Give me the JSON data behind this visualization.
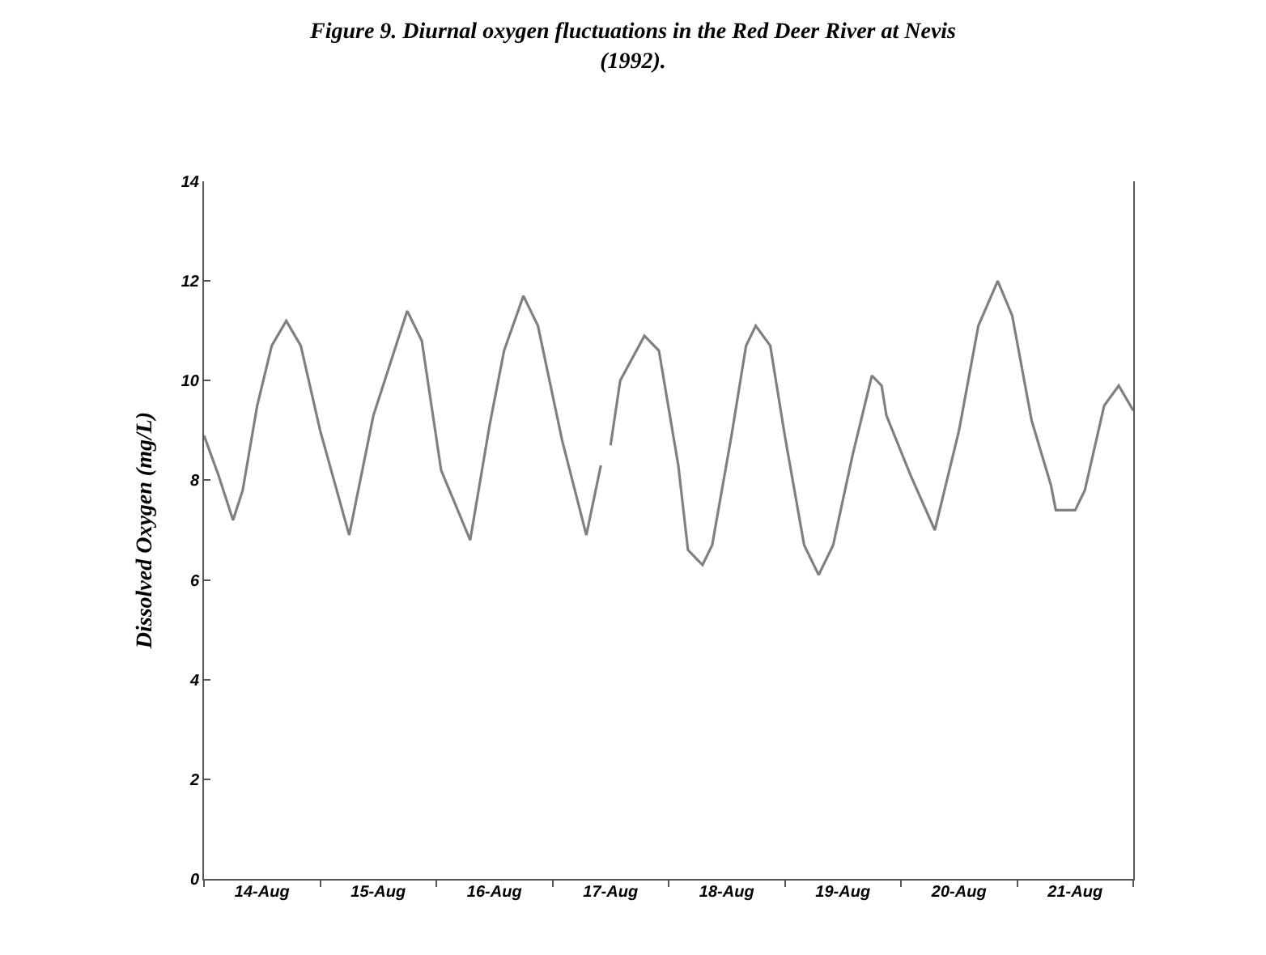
{
  "chart_data": {
    "type": "line",
    "title": "Figure 9. Diurnal oxygen fluctuations in the Red Deer River at Nevis\n(1992).",
    "ylabel": "Dissolved Oxygen (mg/L)",
    "x": [
      "--08-14T00:00",
      "--08-14T03:00",
      "--08-14T06:00",
      "--08-14T08:00",
      "--08-14T11:00",
      "--08-14T14:00",
      "--08-14T17:00",
      "--08-14T20:00",
      "--08-15T00:00",
      "--08-15T06:00",
      "--08-15T11:00",
      "--08-15T18:00",
      "--08-15T21:00",
      "--08-16T01:00",
      "--08-16T07:00",
      "--08-16T11:00",
      "--08-16T14:00",
      "--08-16T18:00",
      "--08-16T21:00",
      "--08-17T02:00",
      "--08-17T07:00",
      "--08-17T10:00",
      "--08-17T11:00",
      "--08-17T12:00",
      "--08-17T14:00",
      "--08-17T19:00",
      "--08-17T22:00",
      "--08-18T02:00",
      "--08-18T04:00",
      "--08-18T07:00",
      "--08-18T09:00",
      "--08-18T13:00",
      "--08-18T16:00",
      "--08-18T18:00",
      "--08-18T21:00",
      "--08-19T00:00",
      "--08-19T04:00",
      "--08-19T07:00",
      "--08-19T10:00",
      "--08-19T14:00",
      "--08-19T18:00",
      "--08-19T20:00",
      "--08-19T21:00",
      "--08-20T02:00",
      "--08-20T07:00",
      "--08-20T12:00",
      "--08-20T16:00",
      "--08-20T20:00",
      "--08-20T23:00",
      "--08-21T03:00",
      "--08-21T07:00",
      "--08-21T08:00",
      "--08-21T12:00",
      "--08-21T14:00",
      "--08-21T18:00",
      "--08-21T21:00",
      "--08-22T00:00"
    ],
    "series": [
      {
        "color": "#808080",
        "values": [
          8.9,
          8.1,
          7.2,
          7.8,
          9.5,
          10.7,
          11.2,
          10.7,
          9.0,
          6.9,
          9.3,
          11.4,
          10.8,
          8.2,
          6.8,
          9.1,
          10.6,
          11.7,
          11.1,
          8.8,
          6.9,
          8.3,
          null,
          8.7,
          10.0,
          10.9,
          10.6,
          8.3,
          6.6,
          6.3,
          6.7,
          8.9,
          10.7,
          11.1,
          10.7,
          8.9,
          6.7,
          6.1,
          6.7,
          8.5,
          10.1,
          9.9,
          9.3,
          8.1,
          7.0,
          9.0,
          11.1,
          12.0,
          11.3,
          9.2,
          7.9,
          7.4,
          7.4,
          7.8,
          9.5,
          9.9,
          9.4
        ]
      }
    ],
    "xlim": [
      "--08-14",
      "--08-22"
    ],
    "xticks": [
      {
        "value": "--08-14",
        "label": null
      },
      {
        "value": "--08-14T12:00",
        "label": "14-Aug"
      },
      {
        "value": "--08-15",
        "label": null
      },
      {
        "value": "--08-15T12:00",
        "label": "15-Aug"
      },
      {
        "value": "--08-16",
        "label": null
      },
      {
        "value": "--08-16T12:00",
        "label": "16-Aug"
      },
      {
        "value": "--08-17",
        "label": null
      },
      {
        "value": "--08-17T12:00",
        "label": "17-Aug"
      },
      {
        "value": "--08-18",
        "label": null
      },
      {
        "value": "--08-18T12:00",
        "label": "18-Aug"
      },
      {
        "value": "--08-19",
        "label": null
      },
      {
        "value": "--08-19T12:00",
        "label": "19-Aug"
      },
      {
        "value": "--08-20",
        "label": null
      },
      {
        "value": "--08-20T12:00",
        "label": "20-Aug"
      },
      {
        "value": "--08-21",
        "label": null
      },
      {
        "value": "--08-21T12:00",
        "label": "21-Aug"
      },
      {
        "value": "--08-22",
        "label": null
      }
    ],
    "ylim": [
      0,
      14
    ],
    "yticks": [
      0,
      2,
      4,
      6,
      8,
      10,
      12,
      14
    ],
    "marker": "none",
    "line_style": "solid"
  }
}
